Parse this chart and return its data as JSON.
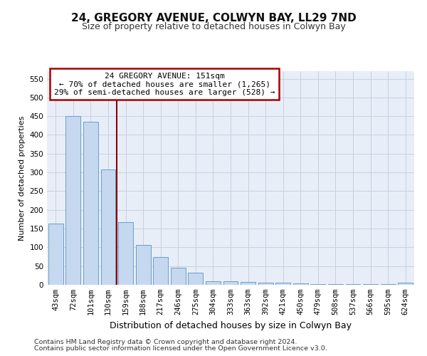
{
  "title": "24, GREGORY AVENUE, COLWYN BAY, LL29 7ND",
  "subtitle": "Size of property relative to detached houses in Colwyn Bay",
  "xlabel": "Distribution of detached houses by size in Colwyn Bay",
  "ylabel": "Number of detached properties",
  "footer_line1": "Contains HM Land Registry data © Crown copyright and database right 2024.",
  "footer_line2": "Contains public sector information licensed under the Open Government Licence v3.0.",
  "categories": [
    "43sqm",
    "72sqm",
    "101sqm",
    "130sqm",
    "159sqm",
    "188sqm",
    "217sqm",
    "246sqm",
    "275sqm",
    "304sqm",
    "333sqm",
    "363sqm",
    "392sqm",
    "421sqm",
    "450sqm",
    "479sqm",
    "508sqm",
    "537sqm",
    "566sqm",
    "595sqm",
    "624sqm"
  ],
  "values": [
    163,
    450,
    435,
    307,
    167,
    106,
    74,
    45,
    33,
    10,
    10,
    8,
    5,
    5,
    4,
    2,
    2,
    2,
    2,
    2,
    5
  ],
  "bar_color": "#c5d8ef",
  "bar_edge_color": "#6a9ec8",
  "vline_x": 3.5,
  "vline_color": "#8b0000",
  "annotation_line1": "24 GREGORY AVENUE: 151sqm",
  "annotation_line2": "← 70% of detached houses are smaller (1,265)",
  "annotation_line3": "29% of semi-detached houses are larger (528) →",
  "annotation_box_color": "#aa0000",
  "annotation_bg": "#ffffff",
  "ylim": [
    0,
    570
  ],
  "yticks": [
    0,
    50,
    100,
    150,
    200,
    250,
    300,
    350,
    400,
    450,
    500,
    550
  ],
  "grid_color": "#c8d0e0",
  "bg_color": "#e8eef8",
  "title_fontsize": 11,
  "subtitle_fontsize": 9,
  "xlabel_fontsize": 9,
  "ylabel_fontsize": 8,
  "tick_fontsize": 7.5,
  "annotation_fontsize": 8,
  "footer_fontsize": 6.8
}
